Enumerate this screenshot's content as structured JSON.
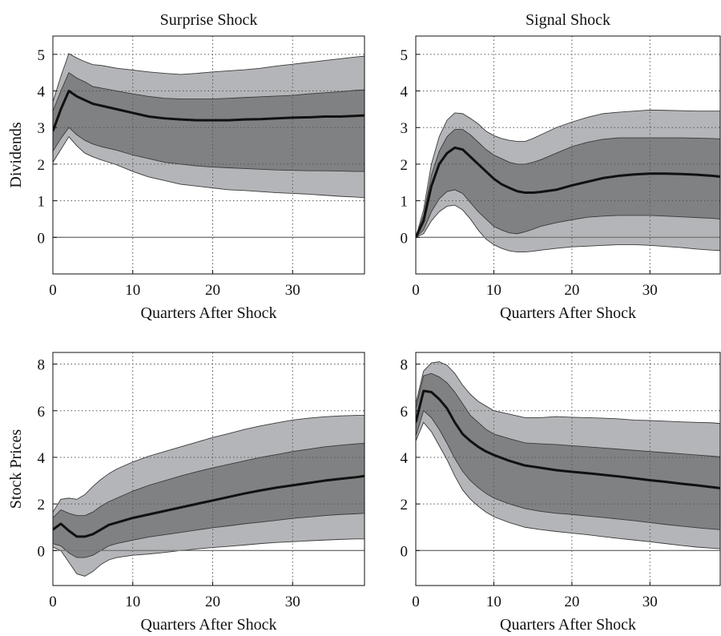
{
  "chart_data": [
    {
      "type": "area",
      "title": "Surprise Shock",
      "xlabel": "Quarters After Shock",
      "ylabel": "Dividends",
      "xlim": [
        0,
        39
      ],
      "ylim": [
        -1,
        5.5
      ],
      "xticks": [
        0,
        10,
        20,
        30
      ],
      "yticks": [
        0,
        1,
        2,
        3,
        4,
        5
      ],
      "grid": true,
      "x": [
        0,
        1,
        2,
        3,
        4,
        5,
        6,
        8,
        10,
        12,
        14,
        16,
        18,
        20,
        22,
        24,
        26,
        28,
        30,
        32,
        34,
        36,
        38,
        39
      ],
      "median": [
        2.9,
        3.5,
        4.0,
        3.85,
        3.75,
        3.65,
        3.6,
        3.5,
        3.4,
        3.3,
        3.25,
        3.22,
        3.2,
        3.2,
        3.2,
        3.22,
        3.23,
        3.25,
        3.27,
        3.28,
        3.3,
        3.3,
        3.32,
        3.33
      ],
      "inner_band": {
        "lower": [
          2.35,
          2.7,
          3.0,
          2.8,
          2.65,
          2.55,
          2.48,
          2.38,
          2.25,
          2.15,
          2.05,
          2.0,
          1.95,
          1.92,
          1.9,
          1.88,
          1.86,
          1.84,
          1.83,
          1.82,
          1.82,
          1.81,
          1.8,
          1.8
        ],
        "upper": [
          3.45,
          4.0,
          4.5,
          4.35,
          4.25,
          4.12,
          4.08,
          4.0,
          3.92,
          3.85,
          3.8,
          3.78,
          3.78,
          3.78,
          3.8,
          3.82,
          3.84,
          3.86,
          3.88,
          3.92,
          3.95,
          3.98,
          4.02,
          4.03
        ]
      },
      "outer_band": {
        "lower": [
          2.05,
          2.4,
          2.75,
          2.5,
          2.3,
          2.2,
          2.12,
          1.98,
          1.8,
          1.65,
          1.55,
          1.45,
          1.4,
          1.35,
          1.3,
          1.28,
          1.25,
          1.22,
          1.2,
          1.18,
          1.15,
          1.12,
          1.1,
          1.08
        ],
        "upper": [
          3.7,
          4.4,
          5.02,
          4.9,
          4.8,
          4.72,
          4.7,
          4.62,
          4.57,
          4.52,
          4.48,
          4.45,
          4.48,
          4.52,
          4.55,
          4.58,
          4.62,
          4.68,
          4.73,
          4.78,
          4.83,
          4.88,
          4.93,
          4.95
        ]
      }
    },
    {
      "type": "area",
      "title": "Signal Shock",
      "xlabel": "Quarters After Shock",
      "ylabel": "",
      "xlim": [
        0,
        39
      ],
      "ylim": [
        -1,
        5.5
      ],
      "xticks": [
        0,
        10,
        20,
        30
      ],
      "yticks": [
        0,
        1,
        2,
        3,
        4,
        5
      ],
      "grid": true,
      "x": [
        0,
        1,
        2,
        3,
        4,
        5,
        6,
        7,
        8,
        9,
        10,
        11,
        12,
        13,
        14,
        15,
        16,
        18,
        20,
        22,
        24,
        26,
        28,
        30,
        32,
        34,
        36,
        38,
        39
      ],
      "median": [
        0.0,
        0.45,
        1.4,
        2.0,
        2.3,
        2.45,
        2.4,
        2.2,
        2.0,
        1.8,
        1.6,
        1.45,
        1.35,
        1.26,
        1.22,
        1.22,
        1.24,
        1.3,
        1.42,
        1.52,
        1.62,
        1.68,
        1.72,
        1.74,
        1.74,
        1.73,
        1.71,
        1.68,
        1.66
      ],
      "inner_band": {
        "lower": [
          0.0,
          0.2,
          0.7,
          1.05,
          1.25,
          1.3,
          1.2,
          0.95,
          0.7,
          0.5,
          0.3,
          0.2,
          0.12,
          0.1,
          0.15,
          0.22,
          0.3,
          0.4,
          0.48,
          0.55,
          0.58,
          0.6,
          0.6,
          0.6,
          0.58,
          0.56,
          0.54,
          0.52,
          0.5
        ],
        "upper": [
          0.0,
          0.6,
          1.7,
          2.35,
          2.75,
          2.95,
          2.95,
          2.8,
          2.6,
          2.4,
          2.25,
          2.15,
          2.05,
          2.0,
          2.0,
          2.05,
          2.12,
          2.3,
          2.48,
          2.6,
          2.68,
          2.72,
          2.72,
          2.72,
          2.72,
          2.72,
          2.71,
          2.7,
          2.69
        ]
      },
      "outer_band": {
        "lower": [
          0.0,
          0.1,
          0.45,
          0.7,
          0.85,
          0.88,
          0.75,
          0.5,
          0.2,
          -0.05,
          -0.2,
          -0.3,
          -0.37,
          -0.4,
          -0.4,
          -0.38,
          -0.35,
          -0.3,
          -0.26,
          -0.24,
          -0.22,
          -0.2,
          -0.2,
          -0.22,
          -0.25,
          -0.28,
          -0.32,
          -0.35,
          -0.36
        ],
        "upper": [
          0.0,
          0.75,
          2.0,
          2.75,
          3.2,
          3.4,
          3.38,
          3.25,
          3.1,
          2.9,
          2.78,
          2.7,
          2.65,
          2.62,
          2.62,
          2.7,
          2.8,
          3.0,
          3.15,
          3.28,
          3.38,
          3.42,
          3.45,
          3.48,
          3.47,
          3.46,
          3.45,
          3.45,
          3.45
        ]
      }
    },
    {
      "type": "area",
      "title": "",
      "xlabel": "Quarters After Shock",
      "ylabel": "Stock Prices",
      "xlim": [
        0,
        39
      ],
      "ylim": [
        -1.5,
        8.5
      ],
      "xticks": [
        0,
        10,
        20,
        30
      ],
      "yticks": [
        0,
        2,
        4,
        6,
        8
      ],
      "grid": true,
      "x": [
        0,
        1,
        2,
        3,
        4,
        5,
        6,
        7,
        8,
        10,
        12,
        14,
        16,
        18,
        20,
        22,
        24,
        26,
        28,
        30,
        32,
        34,
        36,
        38,
        39
      ],
      "median": [
        0.9,
        1.15,
        0.85,
        0.6,
        0.6,
        0.7,
        0.9,
        1.1,
        1.2,
        1.4,
        1.55,
        1.7,
        1.85,
        2.0,
        2.15,
        2.3,
        2.45,
        2.58,
        2.7,
        2.8,
        2.9,
        3.0,
        3.08,
        3.15,
        3.2
      ],
      "inner_band": {
        "lower": [
          0.3,
          0.2,
          -0.1,
          -0.3,
          -0.3,
          -0.2,
          0.0,
          0.2,
          0.3,
          0.45,
          0.58,
          0.68,
          0.78,
          0.88,
          0.98,
          1.06,
          1.15,
          1.22,
          1.3,
          1.38,
          1.44,
          1.5,
          1.55,
          1.58,
          1.6
        ],
        "upper": [
          1.4,
          1.75,
          1.6,
          1.5,
          1.5,
          1.65,
          1.9,
          2.1,
          2.25,
          2.55,
          2.8,
          3.0,
          3.2,
          3.38,
          3.55,
          3.7,
          3.85,
          4.0,
          4.12,
          4.25,
          4.35,
          4.45,
          4.52,
          4.58,
          4.6
        ]
      },
      "outer_band": {
        "lower": [
          0.15,
          0.0,
          -0.5,
          -1.0,
          -1.1,
          -0.9,
          -0.6,
          -0.4,
          -0.3,
          -0.2,
          -0.15,
          -0.08,
          0.0,
          0.07,
          0.13,
          0.18,
          0.24,
          0.3,
          0.35,
          0.38,
          0.42,
          0.45,
          0.48,
          0.5,
          0.5
        ],
        "upper": [
          1.65,
          2.2,
          2.25,
          2.2,
          2.4,
          2.75,
          3.05,
          3.3,
          3.5,
          3.8,
          4.05,
          4.25,
          4.45,
          4.65,
          4.85,
          5.02,
          5.2,
          5.35,
          5.48,
          5.6,
          5.68,
          5.74,
          5.78,
          5.8,
          5.8
        ]
      }
    },
    {
      "type": "area",
      "title": "",
      "xlabel": "Quarters After Shock",
      "ylabel": "",
      "xlim": [
        0,
        39
      ],
      "ylim": [
        -1.5,
        8.5
      ],
      "xticks": [
        0,
        10,
        20,
        30
      ],
      "yticks": [
        0,
        2,
        4,
        6,
        8
      ],
      "grid": true,
      "x": [
        0,
        1,
        2,
        3,
        4,
        5,
        6,
        7,
        8,
        9,
        10,
        12,
        14,
        16,
        18,
        20,
        22,
        24,
        26,
        28,
        30,
        32,
        34,
        36,
        38,
        39
      ],
      "median": [
        5.5,
        6.85,
        6.8,
        6.5,
        6.1,
        5.5,
        5.0,
        4.7,
        4.45,
        4.25,
        4.1,
        3.85,
        3.65,
        3.55,
        3.45,
        3.38,
        3.32,
        3.25,
        3.18,
        3.1,
        3.02,
        2.95,
        2.87,
        2.8,
        2.72,
        2.68
      ],
      "inner_band": {
        "lower": [
          4.9,
          6.0,
          5.7,
          5.2,
          4.6,
          3.95,
          3.4,
          3.0,
          2.7,
          2.45,
          2.25,
          2.0,
          1.8,
          1.68,
          1.6,
          1.55,
          1.48,
          1.42,
          1.35,
          1.28,
          1.2,
          1.12,
          1.05,
          0.98,
          0.92,
          0.9
        ],
        "upper": [
          6.1,
          7.5,
          7.6,
          7.45,
          7.2,
          6.8,
          6.3,
          5.8,
          5.5,
          5.2,
          5.0,
          4.8,
          4.62,
          4.58,
          4.55,
          4.5,
          4.45,
          4.4,
          4.35,
          4.3,
          4.25,
          4.2,
          4.15,
          4.1,
          4.05,
          4.02
        ]
      },
      "outer_band": {
        "lower": [
          4.7,
          5.5,
          5.1,
          4.5,
          3.9,
          3.2,
          2.6,
          2.2,
          1.9,
          1.65,
          1.45,
          1.2,
          1.0,
          0.9,
          0.82,
          0.75,
          0.68,
          0.6,
          0.52,
          0.45,
          0.38,
          0.3,
          0.22,
          0.15,
          0.1,
          0.08
        ],
        "upper": [
          6.3,
          7.7,
          8.05,
          8.1,
          7.95,
          7.6,
          7.1,
          6.7,
          6.4,
          6.2,
          6.0,
          5.85,
          5.7,
          5.7,
          5.75,
          5.72,
          5.7,
          5.68,
          5.65,
          5.6,
          5.58,
          5.55,
          5.52,
          5.5,
          5.48,
          5.45
        ]
      }
    }
  ],
  "colors": {
    "outer_band": "#b4b5b8",
    "inner_band": "#808183",
    "band_edge": "#3a3a3a",
    "median_line": "#111111",
    "zero_line": "#777777",
    "grid": "#555555"
  }
}
